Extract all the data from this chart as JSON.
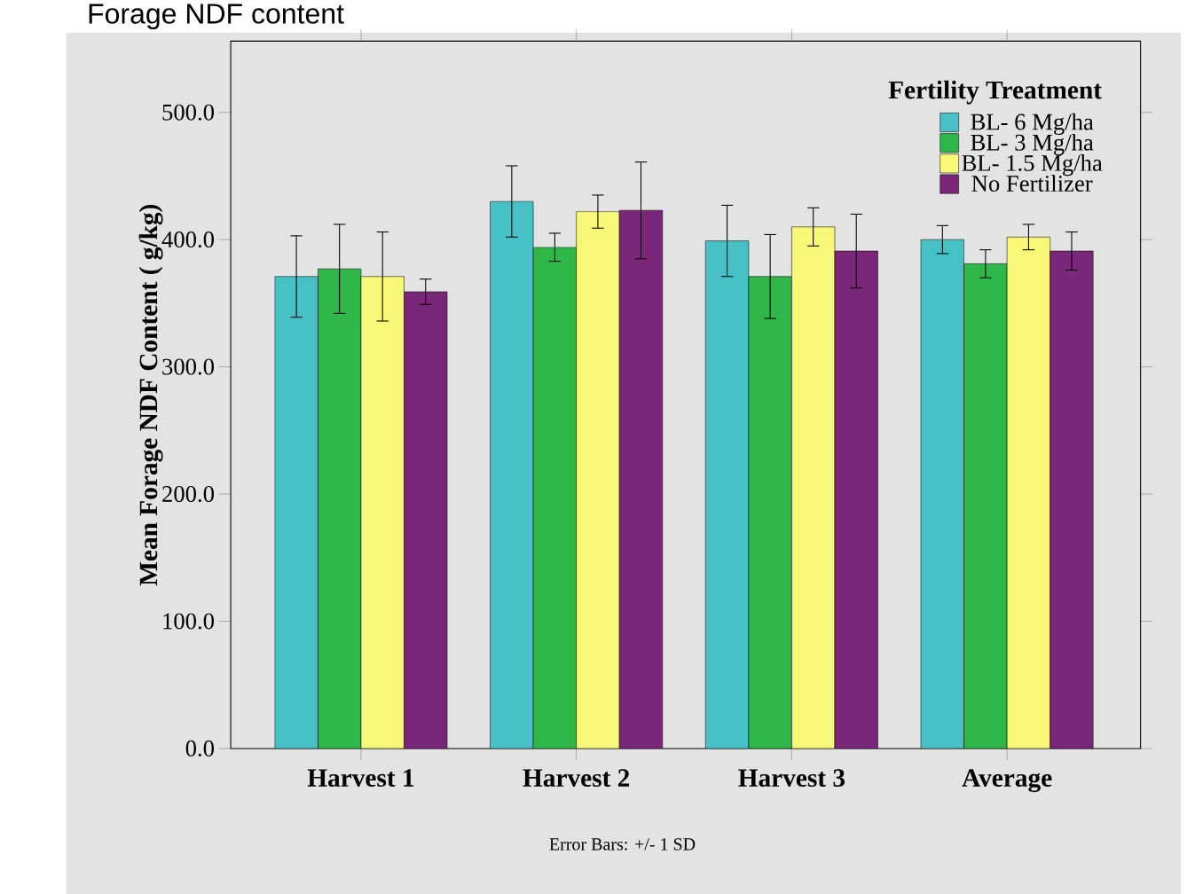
{
  "chart_data": {
    "type": "bar",
    "title": "Forage NDF content",
    "ylabel": "Mean Forage NDF Content ( g/kg)",
    "legend_title": "Fertility Treatment",
    "categories": [
      "Harvest 1",
      "Harvest 2",
      "Harvest 3",
      "Average"
    ],
    "series": [
      {
        "name": "BL- 6 Mg/ha",
        "color": "#48c1c6",
        "values": [
          371,
          430,
          399,
          400
        ],
        "errors": [
          32,
          28,
          28,
          11
        ]
      },
      {
        "name": "BL- 3 Mg/ha",
        "color": "#2fb74a",
        "values": [
          377,
          394,
          371,
          381
        ],
        "errors": [
          35,
          11,
          33,
          11
        ]
      },
      {
        "name": "BL- 1.5 Mg/ha",
        "color": "#f8f878",
        "values": [
          371,
          422,
          410,
          402
        ],
        "errors": [
          35,
          13,
          15,
          10
        ]
      },
      {
        "name": "No Fertilizer",
        "color": "#7b2779",
        "values": [
          359,
          423,
          391,
          391
        ],
        "errors": [
          10,
          38,
          29,
          15
        ]
      }
    ],
    "ylim": [
      0,
      556
    ],
    "yticks": [
      {
        "value": 0,
        "label": "0.0"
      },
      {
        "value": 100,
        "label": "100.0"
      },
      {
        "value": 200,
        "label": "200.0"
      },
      {
        "value": 300,
        "label": "300.0"
      },
      {
        "value": 400,
        "label": "400.0"
      },
      {
        "value": 500,
        "label": "500.0"
      }
    ],
    "legend": "top right",
    "annotations": [
      "Error Bars: +/- 1 SD"
    ]
  }
}
